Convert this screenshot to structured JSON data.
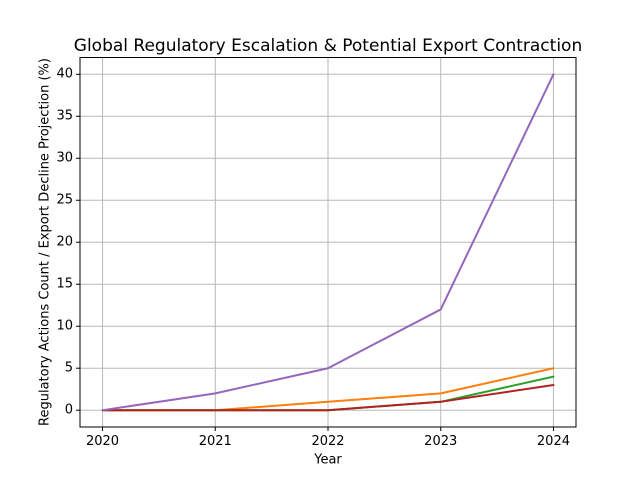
{
  "chart_data": {
    "type": "line",
    "title": "Global Regulatory Escalation & Potential Export Contraction",
    "xlabel": "Year",
    "ylabel": "Regulatory Actions Count / Export Decline Projection (%)",
    "x": [
      2020,
      2021,
      2022,
      2023,
      2024
    ],
    "x_tick_labels": [
      "2020",
      "2021",
      "2022",
      "2023",
      "2024"
    ],
    "y_ticks": [
      0,
      5,
      10,
      15,
      20,
      25,
      30,
      35,
      40
    ],
    "xlim": [
      2019.8,
      2024.2
    ],
    "ylim": [
      -2,
      42
    ],
    "grid": true,
    "legend_position": "none",
    "series": [
      {
        "name": "orange-line",
        "color": "#ff7f0e",
        "values": [
          0,
          0,
          1,
          2,
          5
        ]
      },
      {
        "name": "green-line",
        "color": "#2ca02c",
        "values": [
          0,
          0,
          0,
          1,
          4
        ]
      },
      {
        "name": "red-line",
        "color": "#b22222",
        "values": [
          0,
          0,
          0,
          1,
          3
        ]
      },
      {
        "name": "purple-line",
        "color": "#9467bd",
        "values": [
          0,
          2,
          5,
          12,
          40
        ]
      }
    ],
    "colors": {
      "background": "#ffffff",
      "grid": "#b8b8b8",
      "axis": "#000000",
      "text": "#000000"
    }
  }
}
